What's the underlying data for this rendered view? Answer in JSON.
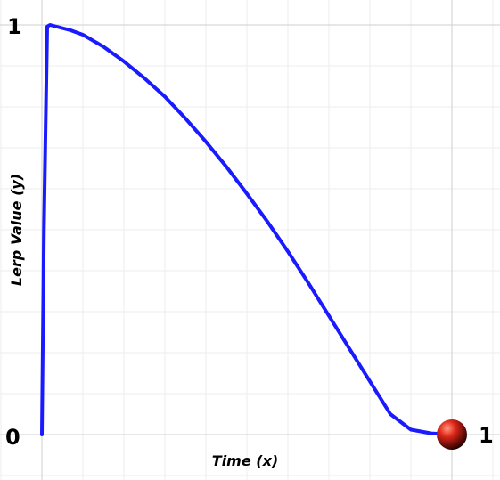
{
  "chart_data": {
    "type": "line",
    "title": "",
    "xlabel": "Time (x)",
    "ylabel": "Lerp Value (y)",
    "xlim": [
      0,
      1
    ],
    "ylim": [
      0,
      1
    ],
    "grid": true,
    "tick_labels": {
      "y_bottom": "0",
      "y_top": "1",
      "x_right": "1"
    },
    "series": [
      {
        "color": "#1a1aff",
        "x": [
          0,
          0.005,
          0.013,
          0.02,
          0.07,
          0.1,
          0.15,
          0.2,
          0.25,
          0.3,
          0.35,
          0.4,
          0.45,
          0.5,
          0.55,
          0.6,
          0.65,
          0.7,
          0.75,
          0.8,
          0.85,
          0.9,
          0.95,
          1.0
        ],
        "y": [
          0,
          0.5,
          0.996,
          1.0,
          0.987,
          0.976,
          0.947,
          0.911,
          0.87,
          0.825,
          0.772,
          0.715,
          0.654,
          0.588,
          0.52,
          0.447,
          0.37,
          0.29,
          0.21,
          0.13,
          0.05,
          0.012,
          0.003,
          0.0
        ]
      }
    ],
    "marker": {
      "x": 1,
      "y": 0,
      "color": "#cc1a1a",
      "shape": "sphere"
    }
  }
}
